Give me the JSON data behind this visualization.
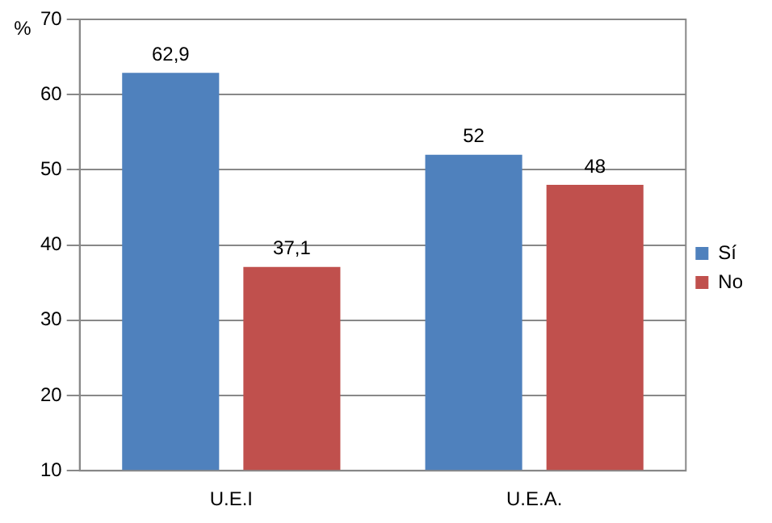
{
  "chart_data": {
    "type": "bar",
    "ylabel": "%",
    "categories": [
      "U.E.I",
      "U.E.A."
    ],
    "series": [
      {
        "name": "Sí",
        "color": "#4f81bd",
        "values": [
          62.9,
          52
        ],
        "value_labels": [
          "62,9",
          "52"
        ]
      },
      {
        "name": "No",
        "color": "#c0504d",
        "values": [
          37.1,
          48
        ],
        "value_labels": [
          "37,1",
          "48"
        ]
      }
    ],
    "ylim": [
      10,
      70
    ],
    "yticks": [
      10,
      20,
      30,
      40,
      50,
      60,
      70
    ],
    "grid": "y",
    "legend": "right"
  }
}
